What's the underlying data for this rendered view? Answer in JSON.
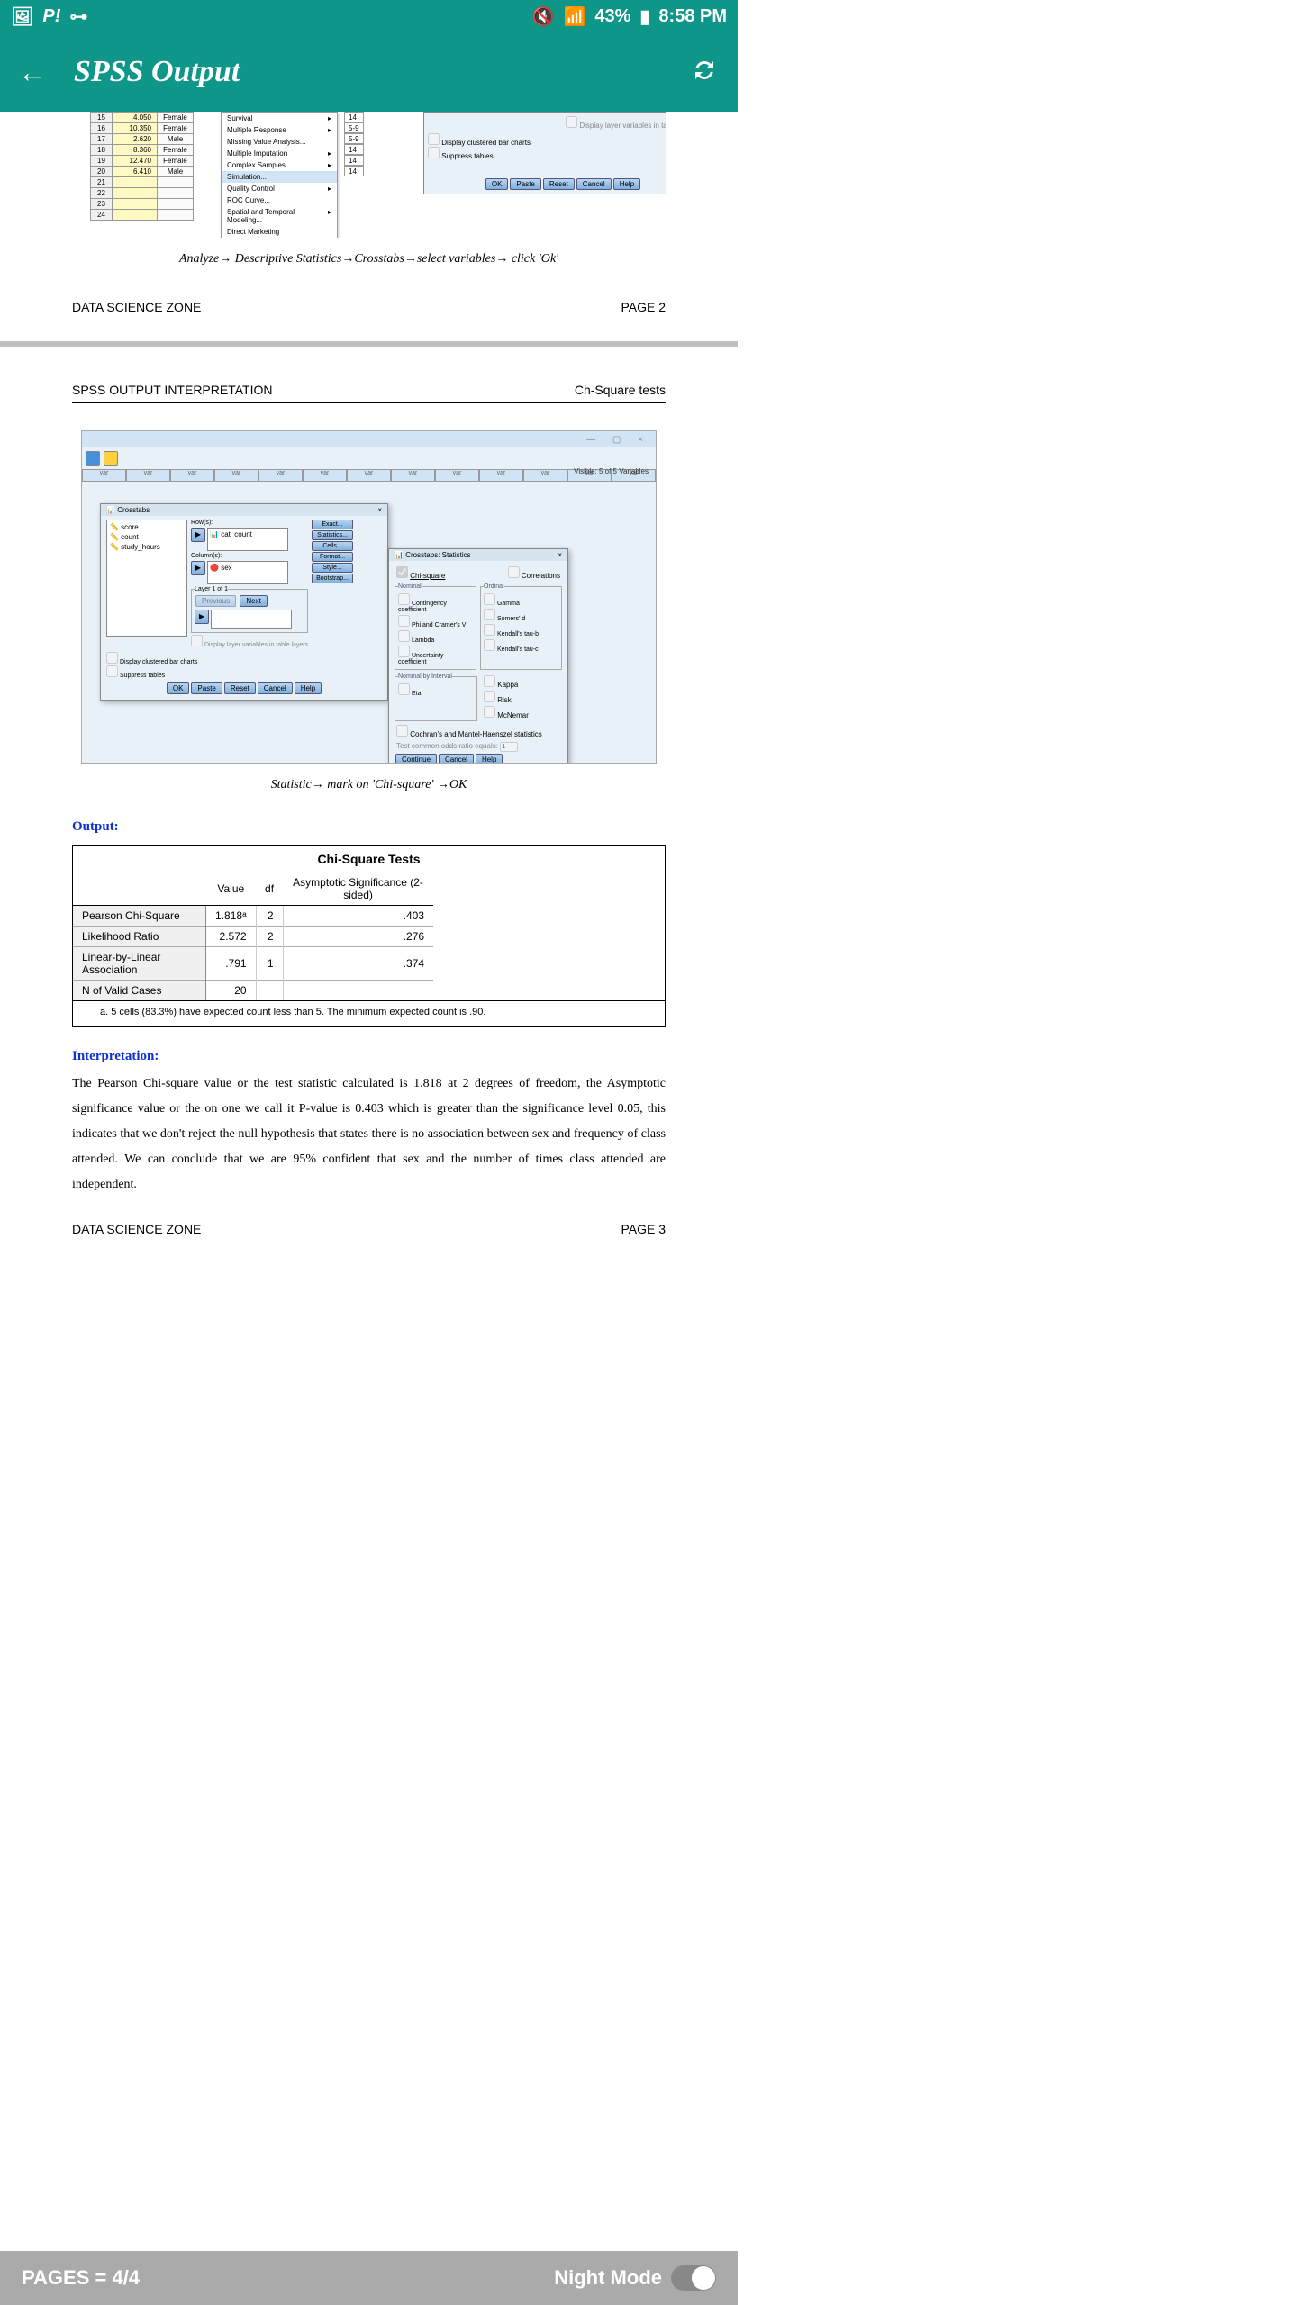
{
  "status": {
    "battery": "43%",
    "time": "8:58 PM"
  },
  "appbar": {
    "title": "SPSS Output"
  },
  "top": {
    "rows": [
      {
        "n": "15",
        "v": "4.050",
        "s": "Female"
      },
      {
        "n": "16",
        "v": "10.350",
        "s": "Female"
      },
      {
        "n": "17",
        "v": "2.620",
        "s": "Male"
      },
      {
        "n": "18",
        "v": "8.360",
        "s": "Female"
      },
      {
        "n": "19",
        "v": "12.470",
        "s": "Female"
      },
      {
        "n": "20",
        "v": "6.410",
        "s": "Male"
      },
      {
        "n": "21",
        "v": "",
        "s": ""
      },
      {
        "n": "22",
        "v": "",
        "s": ""
      },
      {
        "n": "23",
        "v": "",
        "s": ""
      },
      {
        "n": "24",
        "v": "",
        "s": ""
      }
    ],
    "menu": [
      "Survival",
      "Multiple Response",
      "Missing Value Analysis...",
      "Multiple Imputation",
      "Complex Samples",
      "Simulation...",
      "Quality Control",
      "ROC Curve...",
      "Spatial and Temporal Modeling...",
      "Direct Marketing"
    ],
    "col14": [
      "14",
      "5-9",
      "5-9",
      "14",
      "14",
      "14"
    ],
    "dlg": {
      "ck1": "Display clustered bar charts",
      "ck2": "Suppress tables",
      "layer": "Display layer variables in table layers",
      "b": [
        "OK",
        "Paste",
        "Reset",
        "Cancel",
        "Help"
      ]
    }
  },
  "caption1": "Analyze→ Descriptive Statistics→Crosstabs→select variables→ click 'Ok'",
  "footer1": {
    "l": "DATA SCIENCE ZONE",
    "r": "PAGE 2"
  },
  "header2": {
    "l": "SPSS OUTPUT INTERPRETATION",
    "r": "Ch-Square tests"
  },
  "spss2": {
    "visible": "Visible: 5 of 5 Variables",
    "ct": {
      "title": "Crosstabs",
      "vars": [
        "score",
        "count",
        "study_hours"
      ],
      "rows_lbl": "Row(s):",
      "rows_val": "cat_count",
      "cols_lbl": "Column(s):",
      "cols_val": "sex",
      "layer": "Layer 1 of 1",
      "prev": "Previous",
      "next": "Next",
      "layernote": "Display layer variables in table layers",
      "ck1": "Display clustered bar charts",
      "ck2": "Suppress tables",
      "side": [
        "Exact...",
        "Statistics...",
        "Cells...",
        "Format...",
        "Style...",
        "Bootstrap..."
      ],
      "b": [
        "OK",
        "Paste",
        "Reset",
        "Cancel",
        "Help"
      ]
    },
    "st": {
      "title": "Crosstabs: Statistics",
      "chi": "Chi-square",
      "cor": "Correlations",
      "nominal": "Nominal",
      "n1": "Contingency coefficient",
      "n2": "Phi and Cramer's V",
      "n3": "Lambda",
      "n4": "Uncertainty coefficient",
      "ordinal": "Ordinal",
      "o1": "Gamma",
      "o2": "Somers' d",
      "o3": "Kendall's tau-b",
      "o4": "Kendall's tau-c",
      "nbi": "Nominal by Interval",
      "nbi1": "Eta",
      "k": "Kappa",
      "r": "Risk",
      "m": "McNemar",
      "coch": "Cochran's and Mantel-Haenszel statistics",
      "test": "Test common odds ratio equals:",
      "test_v": "1",
      "b": [
        "Continue",
        "Cancel",
        "Help"
      ]
    }
  },
  "caption2": "Statistic→ mark on 'Chi-square' →OK",
  "output_h": "Output:",
  "chi": {
    "title": "Chi-Square Tests",
    "h": [
      "",
      "Value",
      "df",
      "Asymptotic Significance (2-sided)"
    ],
    "rows": [
      [
        "Pearson Chi-Square",
        "1.818ᵃ",
        "2",
        ".403"
      ],
      [
        "Likelihood Ratio",
        "2.572",
        "2",
        ".276"
      ],
      [
        "Linear-by-Linear Association",
        ".791",
        "1",
        ".374"
      ],
      [
        "N of Valid Cases",
        "20",
        "",
        ""
      ]
    ],
    "note": "a. 5 cells (83.3%) have expected count less than 5. The minimum expected count is .90."
  },
  "interp_h": "Interpretation:",
  "interp_p": "The Pearson Chi-square value or the test statistic calculated is 1.818 at 2 degrees of freedom, the Asymptotic significance value or the on one we call it P-value is 0.403 which is greater than the significance level 0.05, this indicates that we don't reject the null hypothesis that states there is no association between sex and frequency of class attended. We can conclude that we are 95% confident that sex and the number of times class attended are independent.",
  "footer2": {
    "l": "DATA SCIENCE ZONE",
    "r": "PAGE 3"
  },
  "bottom": {
    "pages": "PAGES = 4/4",
    "night": "Night Mode"
  }
}
